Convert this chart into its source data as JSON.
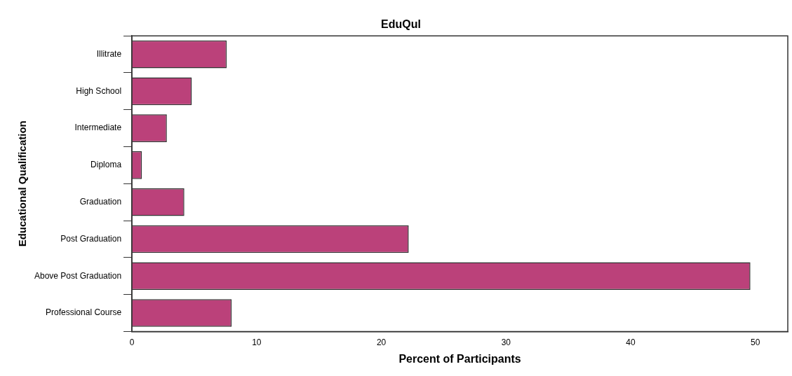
{
  "chart_data": {
    "type": "bar",
    "orientation": "horizontal",
    "title": "EduQul",
    "xlabel": "Percent of Participants",
    "ylabel": "Educational Qualification",
    "categories": [
      "Illitrate",
      "High School",
      "Intermediate",
      "Diploma",
      "Graduation",
      "Post Graduation",
      "Above Post Graduation",
      "Professional Course"
    ],
    "values": [
      7.6,
      4.8,
      2.8,
      0.8,
      4.2,
      22.2,
      49.6,
      8.0
    ],
    "color": "#bb417a",
    "xlim": [
      0,
      52.6
    ],
    "xticks": [
      0,
      10,
      20,
      30,
      40,
      50
    ],
    "grid": false,
    "legend": false
  }
}
